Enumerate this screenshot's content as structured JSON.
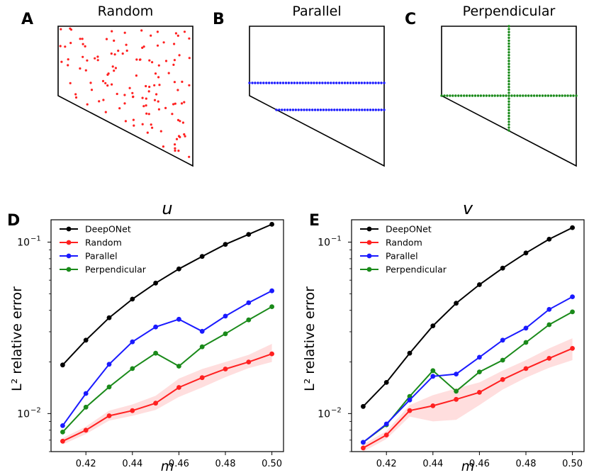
{
  "top_panels": [
    {
      "letter": "A",
      "title": "Random",
      "point_color": "#ff2020",
      "sampling": "random"
    },
    {
      "letter": "B",
      "title": "Parallel",
      "point_color": "#1a1aff",
      "sampling": "parallel"
    },
    {
      "letter": "C",
      "title": "Perpendicular",
      "point_color": "#1a8a1a",
      "sampling": "perpendicular"
    }
  ],
  "chart_data": [
    {
      "type": "line",
      "letter": "D",
      "title": "u",
      "xlabel": "m",
      "ylabel": "L² relative error",
      "yscale": "log",
      "xlim": [
        0.405,
        0.505
      ],
      "ylim": [
        0.006,
        0.135
      ],
      "x": [
        0.41,
        0.42,
        0.43,
        0.44,
        0.45,
        0.46,
        0.47,
        0.48,
        0.49,
        0.5
      ],
      "xticks": [
        "0.42",
        "0.44",
        "0.46",
        "0.48",
        "0.50"
      ],
      "yticks": [
        {
          "value": 0.1,
          "base": "10",
          "exp": "−1"
        },
        {
          "value": 0.01,
          "base": "10",
          "exp": "−2"
        }
      ],
      "legend_position": "top-left",
      "series": [
        {
          "name": "DeepONet",
          "color": "#000000",
          "values": [
            0.0192,
            0.0268,
            0.0362,
            0.0465,
            0.0577,
            0.0698,
            0.0825,
            0.097,
            0.111,
            0.127
          ]
        },
        {
          "name": "Random",
          "color": "#ff2020",
          "values": [
            0.0069,
            0.008,
            0.0097,
            0.0104,
            0.0115,
            0.0142,
            0.0162,
            0.0182,
            0.02,
            0.0223
          ],
          "band_low": [
            0.0066,
            0.0076,
            0.0091,
            0.0097,
            0.0105,
            0.0125,
            0.0142,
            0.0163,
            0.0184,
            0.02
          ],
          "band_high": [
            0.0072,
            0.0084,
            0.0104,
            0.0113,
            0.0127,
            0.016,
            0.0182,
            0.02,
            0.022,
            0.0255
          ]
        },
        {
          "name": "Parallel",
          "color": "#1a1aff",
          "values": [
            0.0085,
            0.0131,
            0.0194,
            0.0262,
            0.032,
            0.0355,
            0.0302,
            0.037,
            0.0443,
            0.052
          ]
        },
        {
          "name": "Perpendicular",
          "color": "#1a8a1a",
          "values": [
            0.0078,
            0.0109,
            0.0143,
            0.0183,
            0.0225,
            0.0189,
            0.0245,
            0.0292,
            0.0352,
            0.042
          ]
        }
      ]
    },
    {
      "type": "line",
      "letter": "E",
      "title": "v",
      "xlabel": "m",
      "ylabel": "L² relative error",
      "yscale": "log",
      "xlim": [
        0.405,
        0.505
      ],
      "ylim": [
        0.006,
        0.135
      ],
      "x": [
        0.41,
        0.42,
        0.43,
        0.44,
        0.45,
        0.46,
        0.47,
        0.48,
        0.49,
        0.5
      ],
      "xticks": [
        "0.42",
        "0.44",
        "0.46",
        "0.48",
        "0.50"
      ],
      "yticks": [
        {
          "value": 0.1,
          "base": "10",
          "exp": "−1"
        },
        {
          "value": 0.01,
          "base": "10",
          "exp": "−2"
        }
      ],
      "legend_position": "top-left",
      "series": [
        {
          "name": "DeepONet",
          "color": "#000000",
          "values": [
            0.011,
            0.0152,
            0.0225,
            0.0325,
            0.044,
            0.0565,
            0.0705,
            0.0865,
            0.104,
            0.1215
          ]
        },
        {
          "name": "Random",
          "color": "#ff2020",
          "values": [
            0.0063,
            0.0075,
            0.0104,
            0.0111,
            0.0121,
            0.0133,
            0.0158,
            0.0183,
            0.021,
            0.024
          ],
          "band_low": [
            0.006,
            0.0071,
            0.0096,
            0.009,
            0.0092,
            0.0112,
            0.0138,
            0.0162,
            0.0185,
            0.0205
          ],
          "band_high": [
            0.0066,
            0.0079,
            0.0112,
            0.0128,
            0.014,
            0.0152,
            0.0178,
            0.0205,
            0.024,
            0.0275
          ]
        },
        {
          "name": "Parallel",
          "color": "#1a1aff",
          "values": [
            0.0068,
            0.0087,
            0.012,
            0.0165,
            0.017,
            0.0213,
            0.0268,
            0.0315,
            0.0405,
            0.048
          ]
        },
        {
          "name": "Perpendicular",
          "color": "#1a8a1a",
          "values": [
            0.0068,
            0.0086,
            0.0126,
            0.0178,
            0.0135,
            0.0175,
            0.0205,
            0.026,
            0.033,
            0.0392
          ]
        }
      ]
    }
  ]
}
